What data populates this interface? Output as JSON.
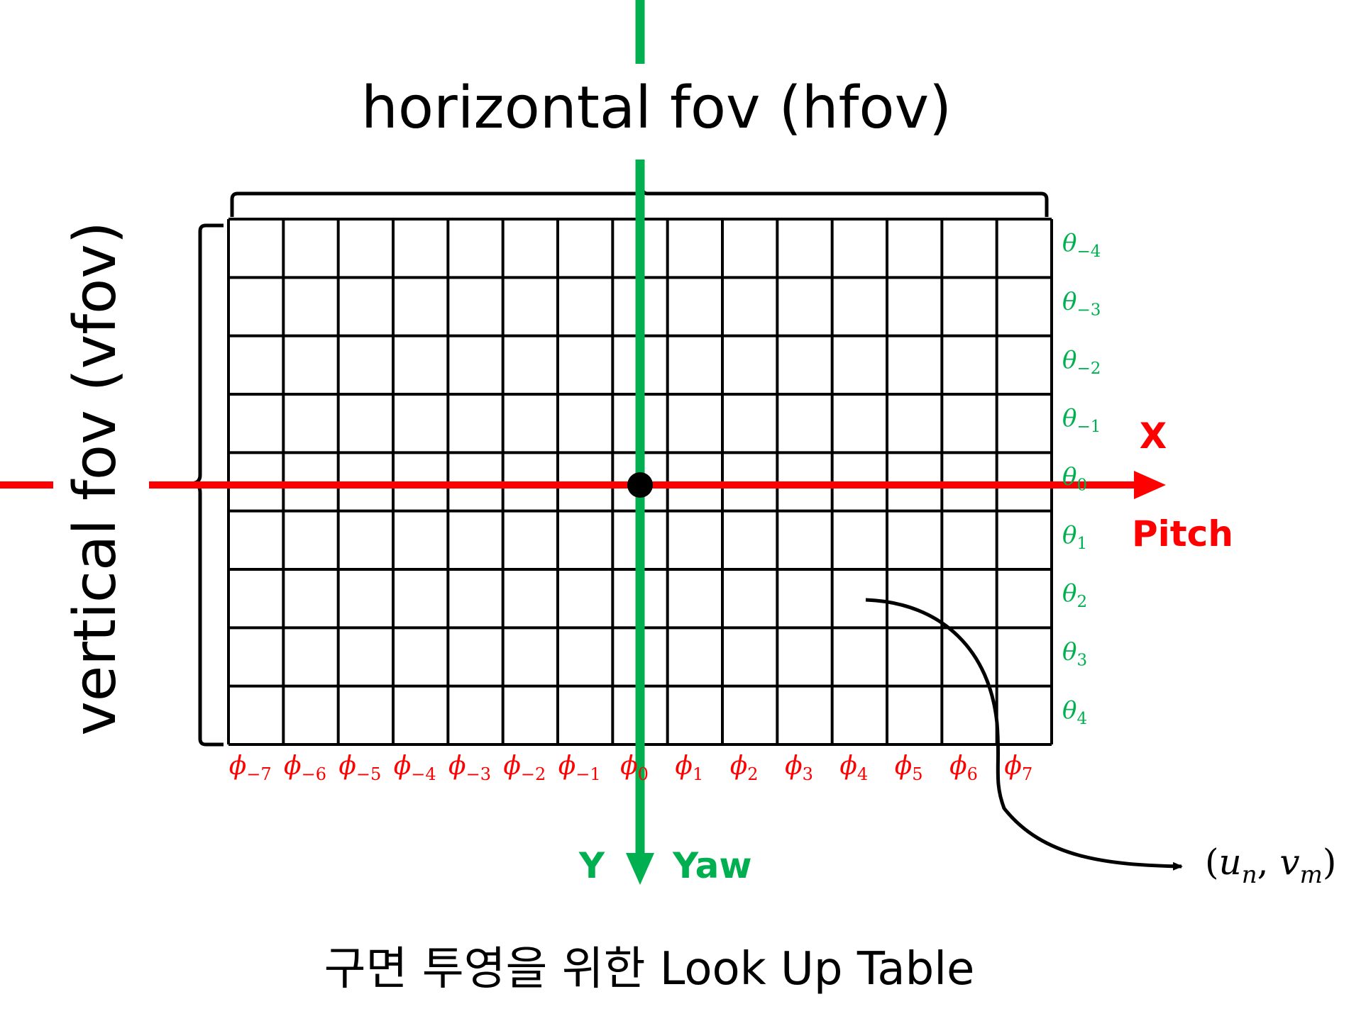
{
  "title_horizontal": "horizontal fov (hfov)",
  "title_vertical": "vertical fov (vfov)",
  "caption": "구면 투영을 위한 Look Up Table",
  "axes": {
    "x_label": "X",
    "pitch_label": "Pitch",
    "y_label": "Y",
    "yaw_label": "Yaw"
  },
  "phi_symbol": "ϕ",
  "theta_symbol": "θ",
  "phi_indices": [
    "−7",
    "−6",
    "−5",
    "−4",
    "−3",
    "−2",
    "−1",
    "0",
    "1",
    "2",
    "3",
    "4",
    "5",
    "6",
    "7"
  ],
  "theta_indices": [
    "−4",
    "−3",
    "−2",
    "−1",
    "0",
    "1",
    "2",
    "3",
    "4"
  ],
  "output_point": {
    "open_paren": "(",
    "u": "u",
    "u_sub": "n",
    "separator": ", ",
    "v": "v",
    "v_sub": "m",
    "close_paren": ")"
  },
  "grid": {
    "columns": 15,
    "rows": 9
  },
  "colors": {
    "pitch_axis": "#ff0000",
    "yaw_axis": "#00b050",
    "phi_labels": "#ff0000",
    "theta_labels": "#00b050",
    "grid_lines": "#000000",
    "text": "#000000"
  }
}
